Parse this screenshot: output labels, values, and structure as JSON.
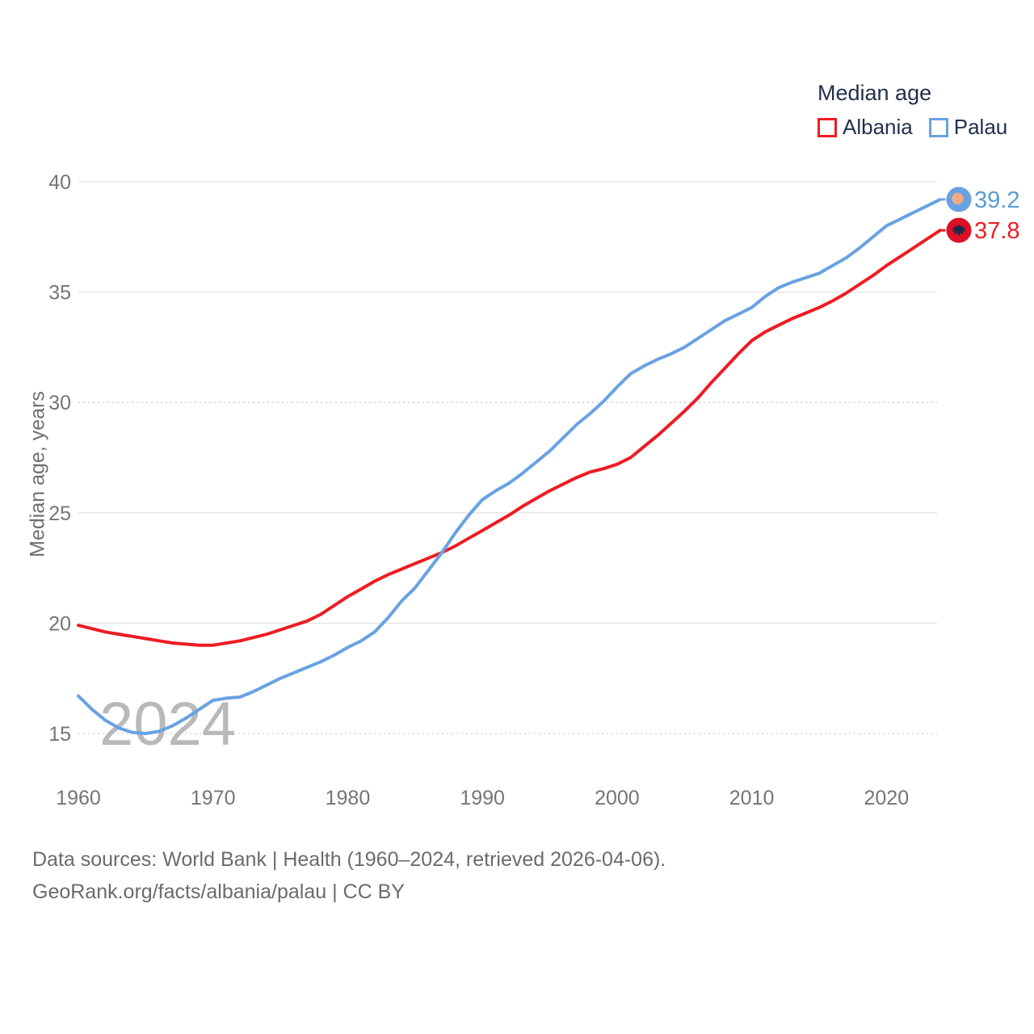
{
  "legend": {
    "title": "Median age",
    "items": [
      {
        "label": "Albania",
        "color": "#ee1c23"
      },
      {
        "label": "Palau",
        "color": "#68a2e2"
      }
    ]
  },
  "y_axis": {
    "title": "Median age, years",
    "ticks": [
      15,
      20,
      25,
      30,
      35,
      40
    ],
    "dotted_ticks": [
      15,
      30
    ]
  },
  "x_axis": {
    "ticks": [
      1960,
      1970,
      1980,
      1990,
      2000,
      2010,
      2020
    ]
  },
  "watermark": "2024",
  "footer": {
    "line1": "Data sources: World Bank | Health (1960–2024, retrieved 2026-04-06).",
    "line2": "GeoRank.org/facts/albania/palau | CC BY"
  },
  "chart_data": {
    "type": "line",
    "title": "Median age",
    "ylabel": "Median age, years",
    "ylim": [
      13.5,
      41
    ],
    "xlim": [
      1960,
      2024
    ],
    "grid": "horizontal",
    "legend_position": "top-right",
    "x": [
      1960,
      1961,
      1962,
      1963,
      1964,
      1965,
      1966,
      1967,
      1968,
      1969,
      1970,
      1971,
      1972,
      1973,
      1974,
      1975,
      1976,
      1977,
      1978,
      1979,
      1980,
      1981,
      1982,
      1983,
      1984,
      1985,
      1986,
      1987,
      1988,
      1989,
      1990,
      1991,
      1992,
      1993,
      1994,
      1995,
      1996,
      1997,
      1998,
      1999,
      2000,
      2001,
      2002,
      2003,
      2004,
      2005,
      2006,
      2007,
      2008,
      2009,
      2010,
      2011,
      2012,
      2013,
      2014,
      2015,
      2016,
      2017,
      2018,
      2019,
      2020,
      2021,
      2022,
      2023,
      2024
    ],
    "series": [
      {
        "name": "Albania",
        "color": "#ee1c23",
        "label_color": "#ee1c23",
        "end_label": "37.8",
        "marker": "albania-flag",
        "marker_fill": "#dd1026",
        "marker_inner": "#1b2a4a",
        "values": [
          19.9,
          19.75,
          19.6,
          19.5,
          19.4,
          19.3,
          19.2,
          19.1,
          19.05,
          19.0,
          19.0,
          19.1,
          19.2,
          19.35,
          19.5,
          19.7,
          19.9,
          20.1,
          20.4,
          20.8,
          21.2,
          21.55,
          21.9,
          22.2,
          22.45,
          22.7,
          22.95,
          23.2,
          23.5,
          23.85,
          24.2,
          24.55,
          24.9,
          25.3,
          25.65,
          26.0,
          26.3,
          26.6,
          26.85,
          27.0,
          27.2,
          27.5,
          28.0,
          28.5,
          29.05,
          29.6,
          30.2,
          30.9,
          31.55,
          32.2,
          32.8,
          33.2,
          33.5,
          33.8,
          34.05,
          34.3,
          34.6,
          34.95,
          35.35,
          35.75,
          36.2,
          36.6,
          37.0,
          37.4,
          37.8
        ]
      },
      {
        "name": "Palau",
        "color": "#68a2e2",
        "label_color": "#5b9bd5",
        "end_label": "39.2",
        "marker": "palau-flag",
        "marker_fill": "#68a2e2",
        "marker_inner": "#f5a983",
        "values": [
          16.7,
          16.1,
          15.6,
          15.25,
          15.05,
          15.0,
          15.1,
          15.35,
          15.7,
          16.1,
          16.5,
          16.6,
          16.65,
          16.9,
          17.2,
          17.5,
          17.75,
          18.0,
          18.25,
          18.55,
          18.9,
          19.2,
          19.6,
          20.25,
          21.0,
          21.6,
          22.4,
          23.2,
          24.1,
          24.9,
          25.6,
          26.0,
          26.35,
          26.8,
          27.3,
          27.8,
          28.4,
          29.0,
          29.5,
          30.05,
          30.7,
          31.3,
          31.65,
          31.95,
          32.2,
          32.5,
          32.9,
          33.3,
          33.7,
          34.0,
          34.3,
          34.8,
          35.2,
          35.45,
          35.65,
          35.85,
          36.2,
          36.55,
          37.0,
          37.5,
          38.0,
          38.3,
          38.6,
          38.9,
          39.2
        ]
      }
    ]
  }
}
